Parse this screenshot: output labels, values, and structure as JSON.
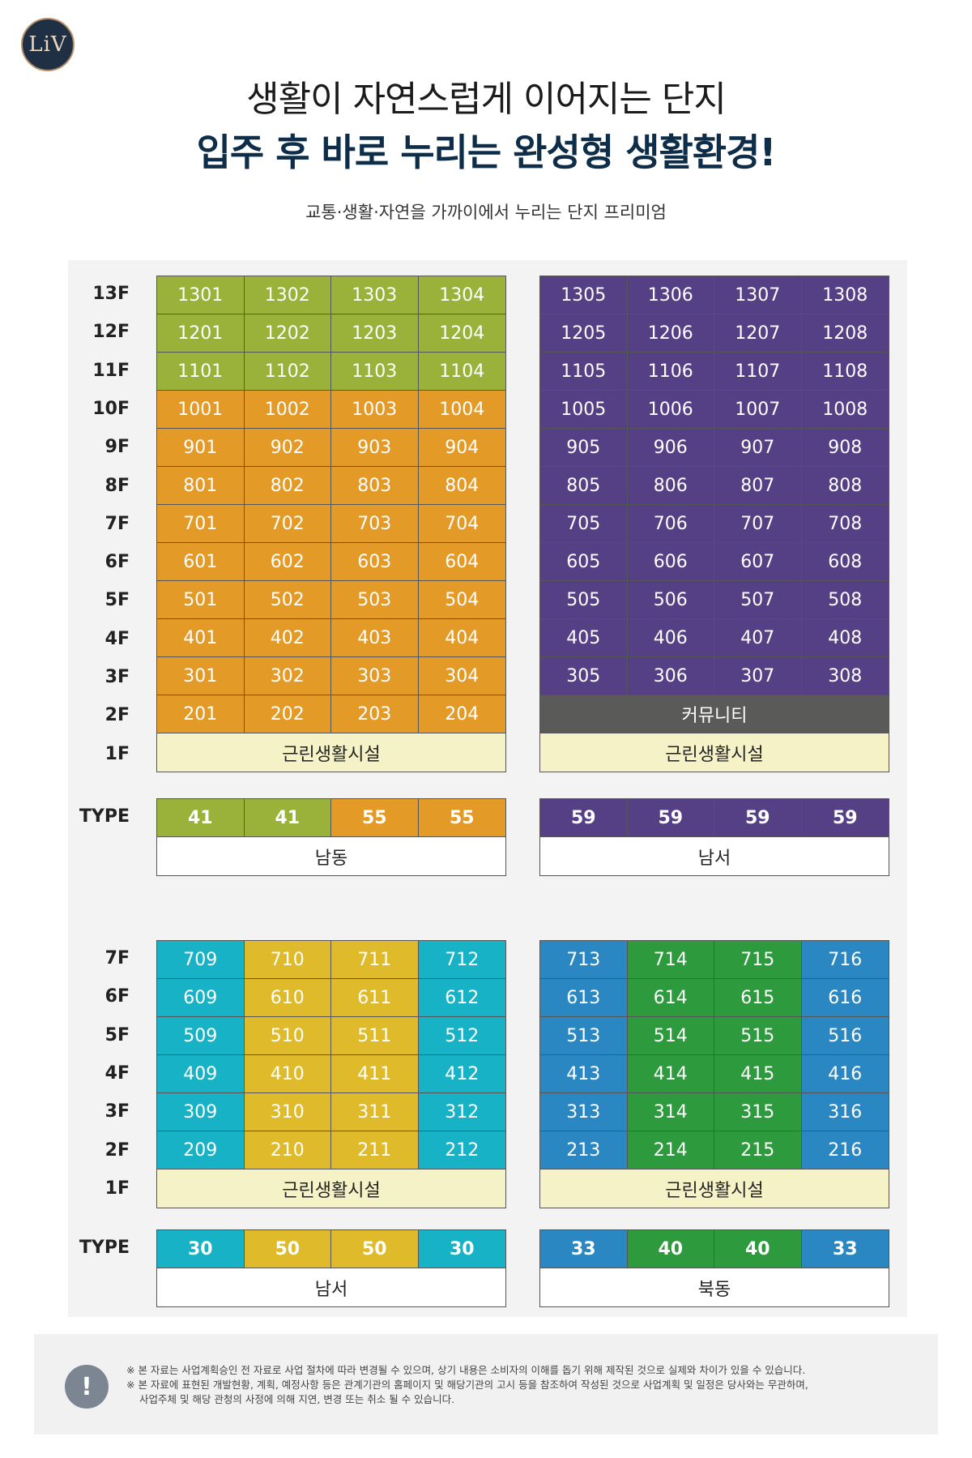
{
  "logo_text": "LiV",
  "headline_1": "생활이 자연스럽게 이어지는 단지",
  "headline_2": "입주 후 바로 누리는 완성형 생활환경!",
  "subtitle": "교통·생활·자연을 가까이에서 누리는 단지 프리미엄",
  "colors": {
    "green": "#9bb23a",
    "orange": "#e49a26",
    "purple": "#553f85",
    "cyan": "#17b2c6",
    "yellow": "#dfba2a",
    "blue": "#2a87c2",
    "dkgreen": "#2e9a3e"
  },
  "top": {
    "floors": [
      "13F",
      "12F",
      "11F",
      "10F",
      "9F",
      "8F",
      "7F",
      "6F",
      "5F",
      "4F",
      "3F",
      "2F",
      "1F"
    ],
    "type_label": "TYPE",
    "left": {
      "rows": [
        [
          "1301",
          "1302",
          "1303",
          "1304"
        ],
        [
          "1201",
          "1202",
          "1203",
          "1204"
        ],
        [
          "1101",
          "1102",
          "1103",
          "1104"
        ],
        [
          "1001",
          "1002",
          "1003",
          "1004"
        ],
        [
          "901",
          "902",
          "903",
          "904"
        ],
        [
          "801",
          "802",
          "803",
          "804"
        ],
        [
          "701",
          "702",
          "703",
          "704"
        ],
        [
          "601",
          "602",
          "603",
          "604"
        ],
        [
          "501",
          "502",
          "503",
          "504"
        ],
        [
          "401",
          "402",
          "403",
          "404"
        ],
        [
          "301",
          "302",
          "303",
          "304"
        ],
        [
          "201",
          "202",
          "203",
          "204"
        ]
      ],
      "row_colors": [
        "green",
        "green",
        "green",
        "orange",
        "orange",
        "orange",
        "orange",
        "orange",
        "orange",
        "orange",
        "orange",
        "orange"
      ],
      "ground": "근린생활시설",
      "types": [
        "41",
        "41",
        "55",
        "55"
      ],
      "type_colors": [
        "green",
        "green",
        "orange",
        "orange"
      ],
      "direction": "남동"
    },
    "right": {
      "rows": [
        [
          "1305",
          "1306",
          "1307",
          "1308"
        ],
        [
          "1205",
          "1206",
          "1207",
          "1208"
        ],
        [
          "1105",
          "1106",
          "1107",
          "1108"
        ],
        [
          "1005",
          "1006",
          "1007",
          "1008"
        ],
        [
          "905",
          "906",
          "907",
          "908"
        ],
        [
          "805",
          "806",
          "807",
          "808"
        ],
        [
          "705",
          "706",
          "707",
          "708"
        ],
        [
          "605",
          "606",
          "607",
          "608"
        ],
        [
          "505",
          "506",
          "507",
          "508"
        ],
        [
          "405",
          "406",
          "407",
          "408"
        ],
        [
          "305",
          "306",
          "307",
          "308"
        ]
      ],
      "row_colors": [
        "purple",
        "purple",
        "purple",
        "purple",
        "purple",
        "purple",
        "purple",
        "purple",
        "purple",
        "purple",
        "purple"
      ],
      "community": "커뮤니티",
      "ground": "근린생활시설",
      "types": [
        "59",
        "59",
        "59",
        "59"
      ],
      "type_colors": [
        "purple",
        "purple",
        "purple",
        "purple"
      ],
      "direction": "남서"
    }
  },
  "bottom": {
    "floors": [
      "7F",
      "6F",
      "5F",
      "4F",
      "3F",
      "2F",
      "1F"
    ],
    "type_label": "TYPE",
    "left": {
      "rows": [
        [
          "709",
          "710",
          "711",
          "712"
        ],
        [
          "609",
          "610",
          "611",
          "612"
        ],
        [
          "509",
          "510",
          "511",
          "512"
        ],
        [
          "409",
          "410",
          "411",
          "412"
        ],
        [
          "309",
          "310",
          "311",
          "312"
        ],
        [
          "209",
          "210",
          "211",
          "212"
        ]
      ],
      "col_colors": [
        "cyan",
        "yellow",
        "yellow",
        "cyan"
      ],
      "ground": "근린생활시설",
      "types": [
        "30",
        "50",
        "50",
        "30"
      ],
      "direction": "남서"
    },
    "right": {
      "rows": [
        [
          "713",
          "714",
          "715",
          "716"
        ],
        [
          "613",
          "614",
          "615",
          "616"
        ],
        [
          "513",
          "514",
          "515",
          "516"
        ],
        [
          "413",
          "414",
          "415",
          "416"
        ],
        [
          "313",
          "314",
          "315",
          "316"
        ],
        [
          "213",
          "214",
          "215",
          "216"
        ]
      ],
      "col_colors": [
        "blue",
        "dkgreen",
        "dkgreen",
        "blue"
      ],
      "ground": "근린생활시설",
      "types": [
        "33",
        "40",
        "40",
        "33"
      ],
      "direction": "북동"
    }
  },
  "notice": {
    "icon": "!",
    "lines": [
      "※ 본 자료는 사업계획승인 전 자료로 사업 절차에 따라 변경될 수 있으며, 상기 내용은 소비자의 이해를 돕기 위해 제작된 것으로 실제와 차이가 있을 수 있습니다.",
      "※ 본 자료에 표현된 개발현황, 계획, 예정사항 등은 관계기관의 홈페이지 및 해당기관의 고시 등을 참조하여 작성된 것으로 사업계획 및 일정은 당사와는 무관하며,",
      "사업주체 및 해당 관청의 사정에 의해 지연, 변경 또는 취소 될 수 있습니다."
    ]
  }
}
